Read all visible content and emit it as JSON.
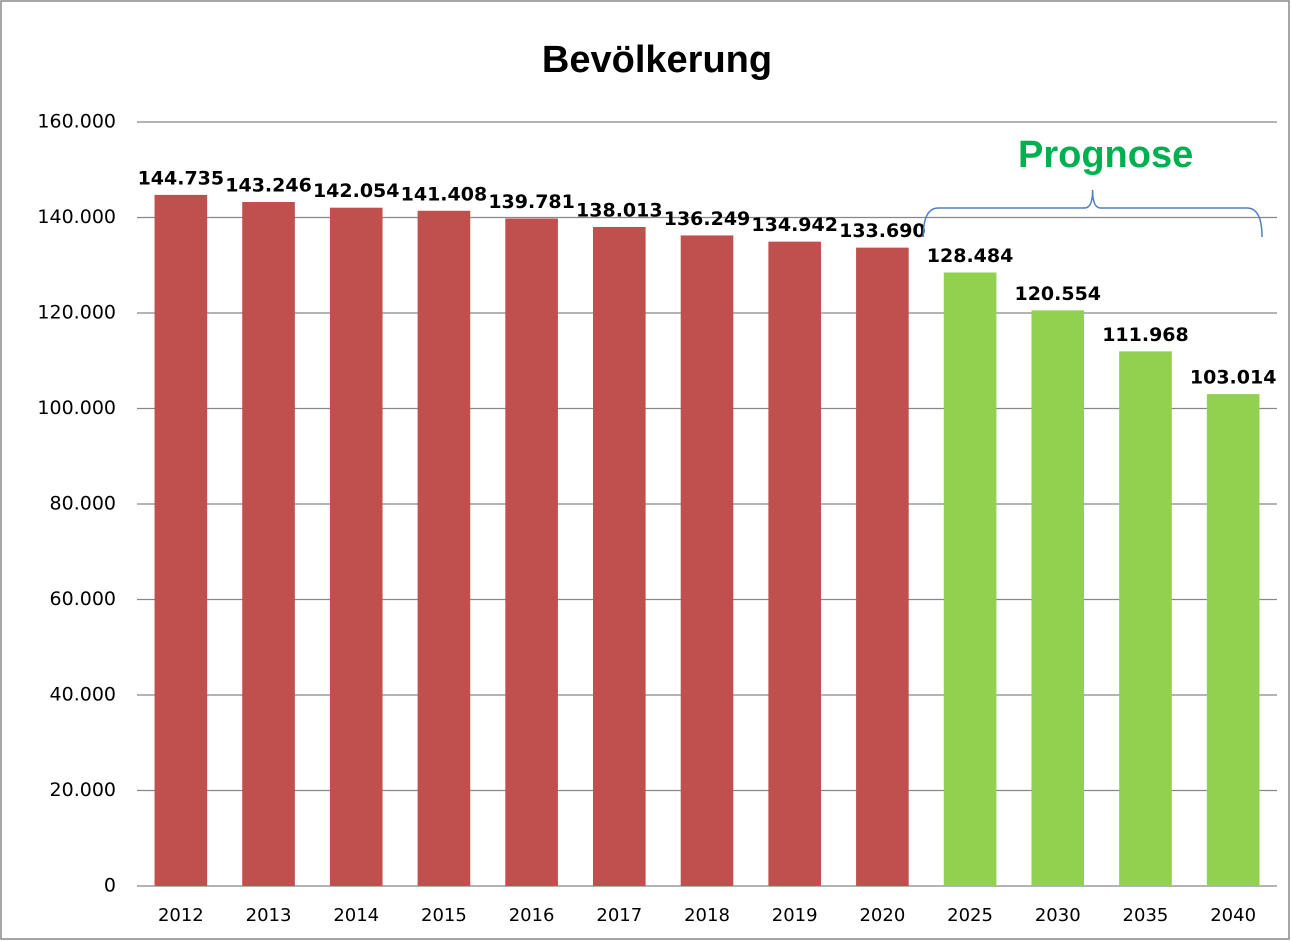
{
  "chart_data": {
    "type": "bar",
    "title": "Bevölkerung",
    "annotation": "Prognose",
    "categories": [
      "2012",
      "2013",
      "2014",
      "2015",
      "2016",
      "2017",
      "2018",
      "2019",
      "2020",
      "2025",
      "2030",
      "2035",
      "2040"
    ],
    "values": [
      144735,
      143246,
      142054,
      141408,
      139781,
      138013,
      136249,
      134942,
      133690,
      128484,
      120554,
      111968,
      103014
    ],
    "value_labels": [
      "144.735",
      "143.246",
      "142.054",
      "141.408",
      "139.781",
      "138.013",
      "136.249",
      "134.942",
      "133.690",
      "128.484",
      "120.554",
      "111.968",
      "103.014"
    ],
    "colors": [
      "#c0504d",
      "#c0504d",
      "#c0504d",
      "#c0504d",
      "#c0504d",
      "#c0504d",
      "#c0504d",
      "#c0504d",
      "#c0504d",
      "#92d050",
      "#92d050",
      "#92d050",
      "#92d050"
    ],
    "annotation_color": "#00b050",
    "ylim": [
      0,
      160000
    ],
    "yticks": [
      0,
      {
        "value": 20000,
        "label": "20.000"
      },
      {
        "value": 40000,
        "label": "40.000"
      },
      {
        "value": 60000,
        "label": "60.000"
      },
      {
        "value": 80000,
        "label": "80.000"
      },
      {
        "value": 100000,
        "label": "100.000"
      },
      {
        "value": 120000,
        "label": "120.000"
      },
      {
        "value": 140000,
        "label": "140.000"
      },
      {
        "value": 160000,
        "label": "160.000"
      }
    ],
    "grid": true
  }
}
